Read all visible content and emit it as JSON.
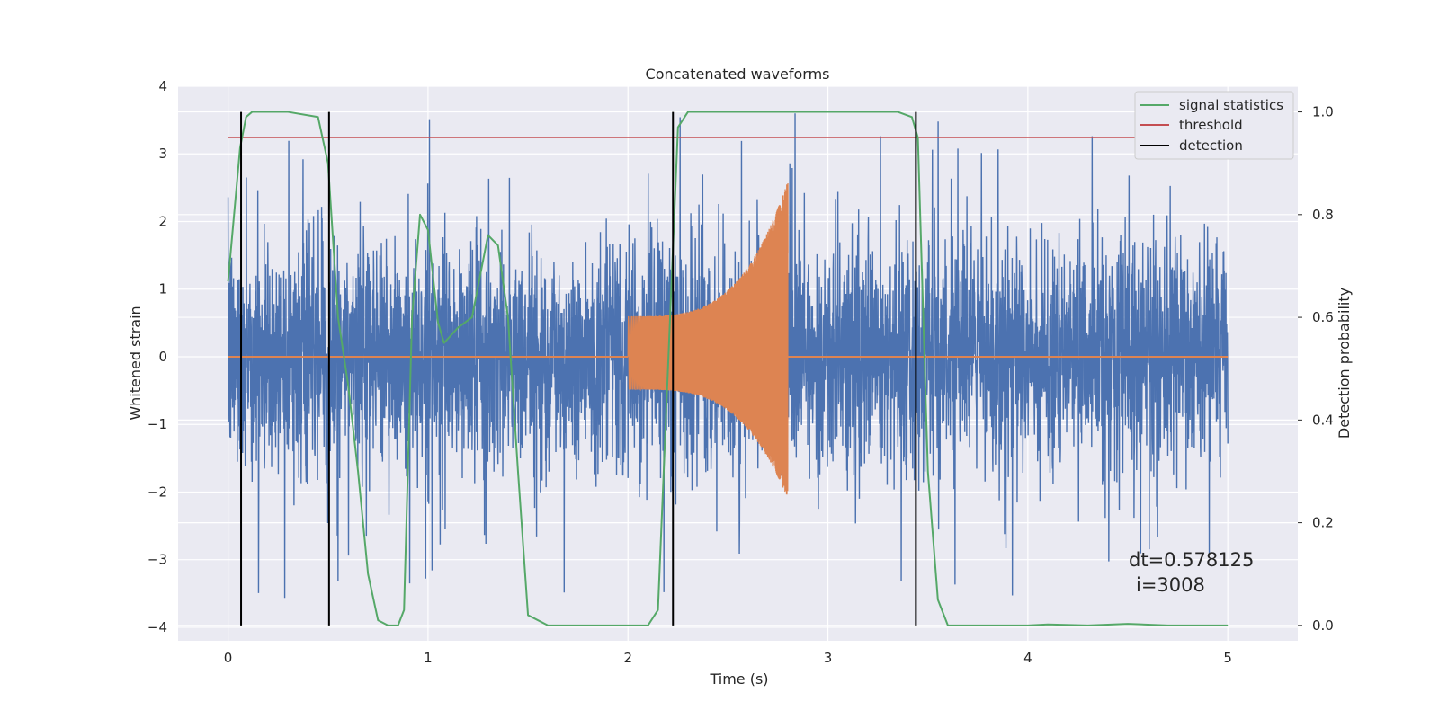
{
  "chart_data": {
    "type": "line",
    "title": "Concatenated waveforms",
    "xlabel": "Time (s)",
    "ylabel": "Whitened strain",
    "ylabel_right": "Detection probability",
    "xlim": [
      -0.25,
      5.35
    ],
    "ylim": [
      -4.2,
      4.0
    ],
    "ylim_right": [
      -0.03,
      1.05
    ],
    "xticks": [
      0,
      1,
      2,
      3,
      4,
      5
    ],
    "xtick_labels": [
      "0",
      "1",
      "2",
      "3",
      "4",
      "5"
    ],
    "yticks": [
      -4,
      -3,
      -2,
      -1,
      0,
      1,
      2,
      3,
      4
    ],
    "ytick_labels": [
      "−4",
      "−3",
      "−2",
      "−1",
      "0",
      "1",
      "2",
      "3",
      "4"
    ],
    "yticks_right": [
      0.0,
      0.2,
      0.4,
      0.6,
      0.8,
      1.0
    ],
    "ytick_right_labels": [
      "0.0",
      "0.2",
      "0.4",
      "0.6",
      "0.8",
      "1.0"
    ],
    "grid": true,
    "legend_position": "top-right",
    "series": [
      {
        "color": "#4c72b0",
        "axis": "left",
        "kind": "noise",
        "x_range": [
          0,
          5
        ],
        "amplitude_typical": 1.6,
        "amplitude_max": 3.6
      },
      {
        "color": "#dd8452",
        "axis": "left",
        "kind": "chirp",
        "x_range": [
          2.0,
          2.8
        ],
        "start_amplitude": 0.6,
        "peak_amplitude": 2.6,
        "min_amplitude": -2.1,
        "baseline": 0.0
      },
      {
        "name": "signal statistics",
        "color": "#55a868",
        "axis": "right",
        "x": [
          0.0,
          0.03,
          0.06,
          0.09,
          0.12,
          0.15,
          0.3,
          0.45,
          0.5,
          0.55,
          0.6,
          0.65,
          0.7,
          0.75,
          0.8,
          0.85,
          0.88,
          0.92,
          0.96,
          1.0,
          1.05,
          1.08,
          1.15,
          1.22,
          1.3,
          1.35,
          1.4,
          1.45,
          1.5,
          1.6,
          1.8,
          2.0,
          2.1,
          2.15,
          2.2,
          2.25,
          2.3,
          2.5,
          3.0,
          3.35,
          3.42,
          3.45,
          3.5,
          3.55,
          3.6,
          3.8,
          4.0,
          4.1,
          4.3,
          4.5,
          4.7,
          5.0
        ],
        "y": [
          0.67,
          0.8,
          0.93,
          0.99,
          1.0,
          1.0,
          1.0,
          0.99,
          0.9,
          0.6,
          0.47,
          0.3,
          0.1,
          0.01,
          0.0,
          0.0,
          0.03,
          0.6,
          0.8,
          0.77,
          0.59,
          0.55,
          0.58,
          0.6,
          0.76,
          0.74,
          0.6,
          0.3,
          0.02,
          0.0,
          0.0,
          0.0,
          0.0,
          0.03,
          0.5,
          0.97,
          1.0,
          1.0,
          1.0,
          1.0,
          0.99,
          0.95,
          0.3,
          0.05,
          0.0,
          0.0,
          0.0,
          0.002,
          0.0,
          0.003,
          0.0,
          0.0
        ]
      },
      {
        "name": "threshold",
        "color": "#c44e52",
        "axis": "right",
        "x": [
          0.0,
          5.1
        ],
        "y": [
          0.95,
          0.95
        ]
      },
      {
        "name": "detection",
        "color": "#000000",
        "axis": "right",
        "kind": "vlines",
        "x": [
          0.065,
          0.505,
          2.225,
          3.44
        ],
        "y_range": [
          0.0,
          1.0
        ]
      }
    ],
    "annotations": [
      {
        "text": "dt=0.578125",
        "x": 4.5,
        "y": -3.0
      },
      {
        "text": "i=3008",
        "x": 4.53,
        "y": -3.4
      }
    ]
  }
}
